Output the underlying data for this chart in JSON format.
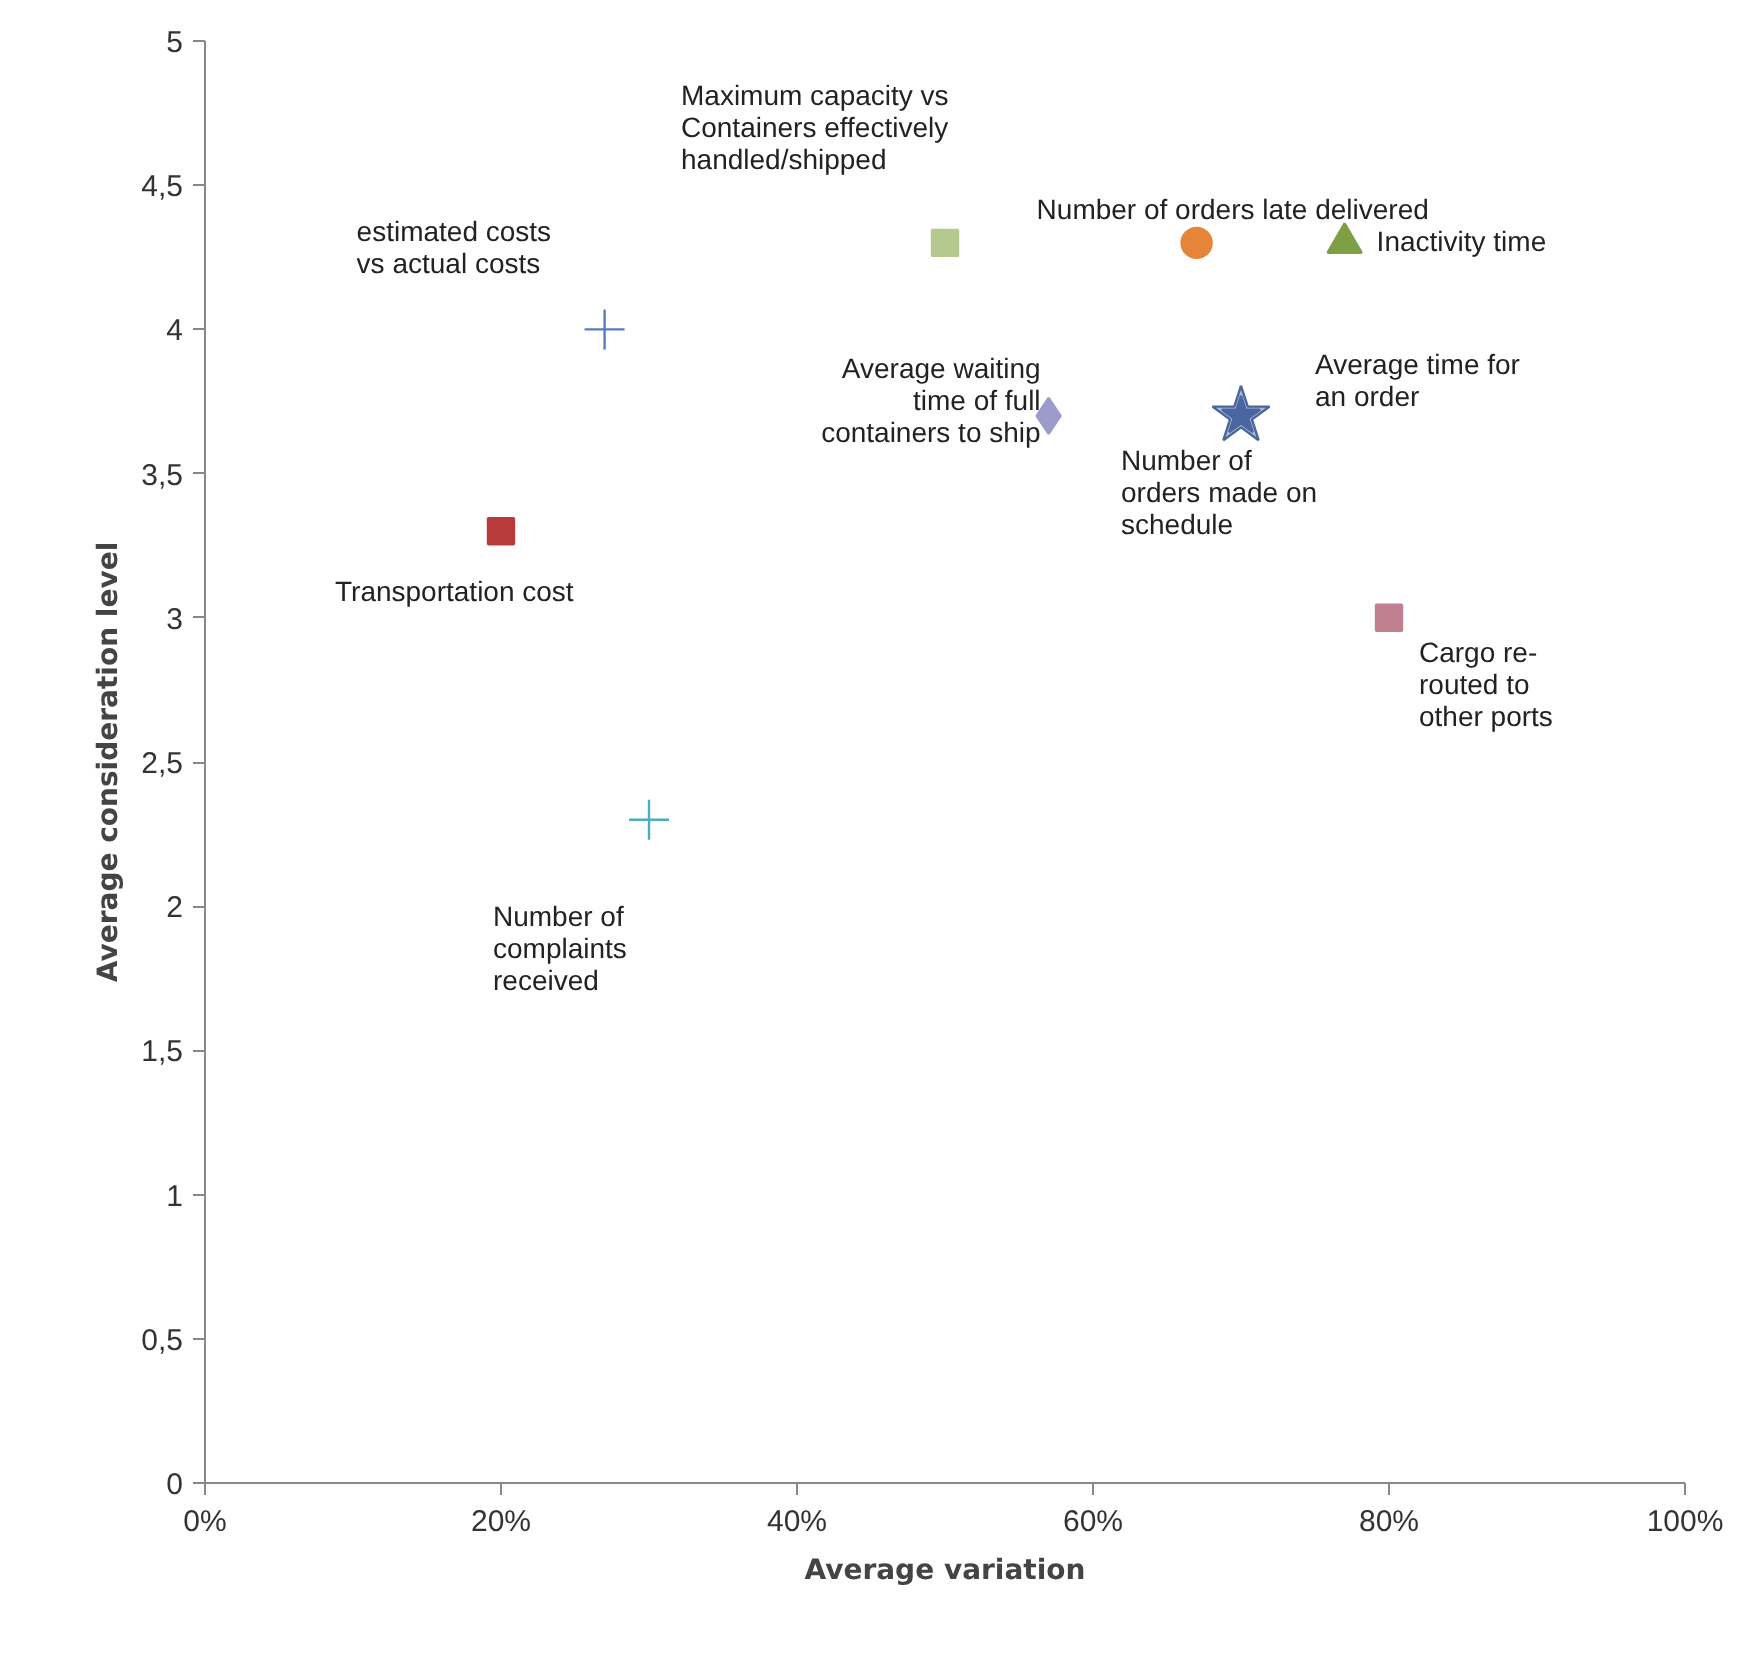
{
  "chart_data": {
    "type": "scatter",
    "xlabel": "Average variation",
    "ylabel": "Average consideration level",
    "xlim": [
      0,
      100
    ],
    "xticks": [
      {
        "value": 0,
        "label": "0%"
      },
      {
        "value": 20,
        "label": "20%"
      },
      {
        "value": 40,
        "label": "40%"
      },
      {
        "value": 60,
        "label": "60%"
      },
      {
        "value": 80,
        "label": "80%"
      },
      {
        "value": 100,
        "label": "100%"
      }
    ],
    "ylim": [
      0,
      5
    ],
    "yticks": [
      0,
      {
        "value": 0.5,
        "label": "0,5"
      },
      1,
      {
        "value": 1.5,
        "label": "1,5"
      },
      2,
      {
        "value": 2.5,
        "label": "2,5"
      },
      3,
      {
        "value": 3.5,
        "label": "3,5"
      },
      4,
      {
        "value": 4.5,
        "label": "4,5"
      },
      5
    ],
    "grid": false,
    "legend": false,
    "series": [
      {
        "name": "estimated costs\nvs actual costs",
        "color": "#5a7ac0",
        "marker": "cross",
        "x": [
          27
        ],
        "values": [
          4.0
        ]
      },
      {
        "name": "Transportation cost",
        "color": "#b83c3c",
        "marker": "square",
        "x": [
          20
        ],
        "values": [
          3.3
        ]
      },
      {
        "name": "Number of\ncomplaints\nreceived",
        "color": "#4bacc6",
        "marker": "cross",
        "x": [
          30
        ],
        "values": [
          2.3
        ]
      },
      {
        "name": "Maximum capacity vs\nContainers effectively\nhandled/shipped",
        "color": "#b5c98f",
        "marker": "square",
        "x": [
          50
        ],
        "values": [
          4.3
        ]
      },
      {
        "name": "Average waiting\ntime of full\ncontainers to ship",
        "color": "#9c9ccc",
        "marker": "diamond",
        "x": [
          57
        ],
        "values": [
          3.7
        ]
      },
      {
        "name": "Number of orders late delivered",
        "color": "#e5853a",
        "marker": "circle",
        "x": [
          67
        ],
        "values": [
          4.3
        ]
      },
      {
        "name": "Inactivity time",
        "color": "#7f9f45",
        "marker": "triangle",
        "x": [
          77
        ],
        "values": [
          4.3
        ]
      },
      {
        "name": "Average time for\nan order",
        "color": "#4a66a0",
        "marker": "star",
        "x": [
          70
        ],
        "values": [
          3.7
        ]
      },
      {
        "name": "Number of\norders made on\nschedule",
        "color": "#4a66a0",
        "marker": "star",
        "x": [
          70
        ],
        "values": [
          3.7
        ]
      },
      {
        "name": "Cargo re-\nrouted to\nother ports",
        "color": "#c0808f",
        "marker": "square",
        "x": [
          80
        ],
        "values": [
          3.0
        ]
      }
    ]
  }
}
